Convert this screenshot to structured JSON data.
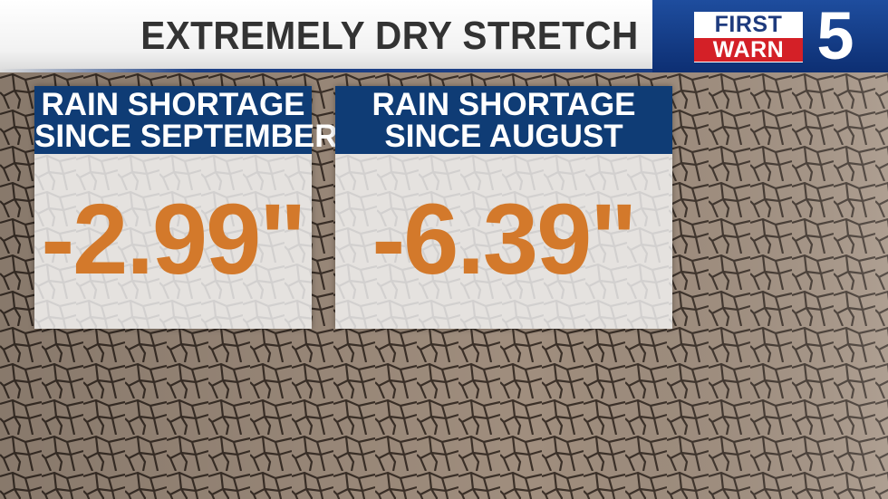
{
  "title": "EXTREMELY DRY STRETCH",
  "logo": {
    "line1": "FIRST",
    "line2": "WARN",
    "number": "5"
  },
  "cards": [
    {
      "heading_line1": "RAIN SHORTAGE",
      "heading_line2": "SINCE SEPTEMBER",
      "value": "-2.99\""
    },
    {
      "heading_line1": "RAIN SHORTAGE",
      "heading_line2": "SINCE AUGUST",
      "value": "-6.39\""
    }
  ],
  "colors": {
    "accent_blue": "#0f3c75",
    "value_orange": "#d3792b",
    "logo_red": "#d42027"
  }
}
